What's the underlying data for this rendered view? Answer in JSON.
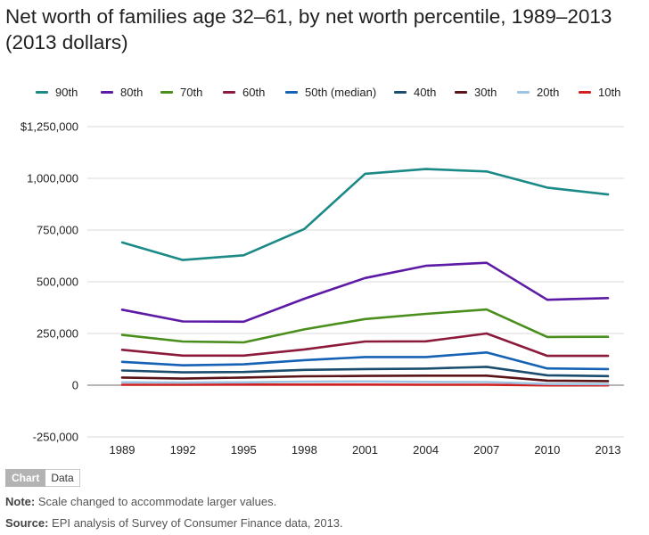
{
  "title": "Net worth of families age 32–61, by net worth percentile, 1989–2013 (2013 dollars)",
  "tabs": {
    "chart_label": "Chart",
    "data_label": "Data"
  },
  "note": {
    "prefix": "Note:",
    "text": " Scale changed to accommodate larger values."
  },
  "source": {
    "prefix": "Source:",
    "text": " EPI analysis of  Survey of Consumer Finance data, 2013."
  },
  "chart_data": {
    "type": "line",
    "title": "Net worth of families age 32–61, by net worth percentile, 1989–2013 (2013 dollars)",
    "xlabel": "",
    "ylabel": "",
    "x": [
      "1989",
      "1992",
      "1995",
      "1998",
      "2001",
      "2004",
      "2007",
      "2010",
      "2013"
    ],
    "ylim": [
      -250000,
      1250000
    ],
    "yticks": [
      -250000,
      0,
      250000,
      500000,
      750000,
      1000000,
      1250000
    ],
    "ytick_labels": [
      "-250,000",
      "0",
      "250,000",
      "500,000",
      "750,000",
      "1,000,000",
      "$1,250,000"
    ],
    "grid": "horizontal",
    "legend_position": "top",
    "series": [
      {
        "name": "90th",
        "color": "#1b8a87",
        "values": [
          690000,
          605000,
          628000,
          755000,
          1022000,
          1045000,
          1033000,
          955000,
          922000
        ]
      },
      {
        "name": "80th",
        "color": "#5c1aa5",
        "values": [
          365000,
          308000,
          307000,
          418000,
          518000,
          577000,
          592000,
          413000,
          421000
        ]
      },
      {
        "name": "70th",
        "color": "#4a8f1d",
        "values": [
          243000,
          211000,
          207000,
          270000,
          320000,
          345000,
          366000,
          233000,
          234000
        ]
      },
      {
        "name": "60th",
        "color": "#8b1a3b",
        "values": [
          171000,
          143000,
          143000,
          173000,
          211000,
          212000,
          250000,
          142000,
          142000
        ]
      },
      {
        "name": "50th (median)",
        "color": "#1561b5",
        "values": [
          113000,
          96000,
          101000,
          121000,
          136000,
          136000,
          158000,
          81000,
          78000
        ]
      },
      {
        "name": "40th",
        "color": "#1a4d6e",
        "values": [
          71000,
          62000,
          64000,
          74000,
          78000,
          80000,
          89000,
          48000,
          44000
        ]
      },
      {
        "name": "30th",
        "color": "#5a1418",
        "values": [
          37000,
          32000,
          37000,
          43000,
          45000,
          46000,
          46000,
          22000,
          20000
        ]
      },
      {
        "name": "20th",
        "color": "#9dc5e3",
        "values": [
          14000,
          13000,
          14000,
          17000,
          18000,
          16000,
          15000,
          6000,
          5000
        ]
      },
      {
        "name": "10th",
        "color": "#d41f1f",
        "values": [
          2000,
          2000,
          3000,
          3000,
          3000,
          2000,
          2000,
          -1000,
          -1000
        ]
      }
    ]
  }
}
